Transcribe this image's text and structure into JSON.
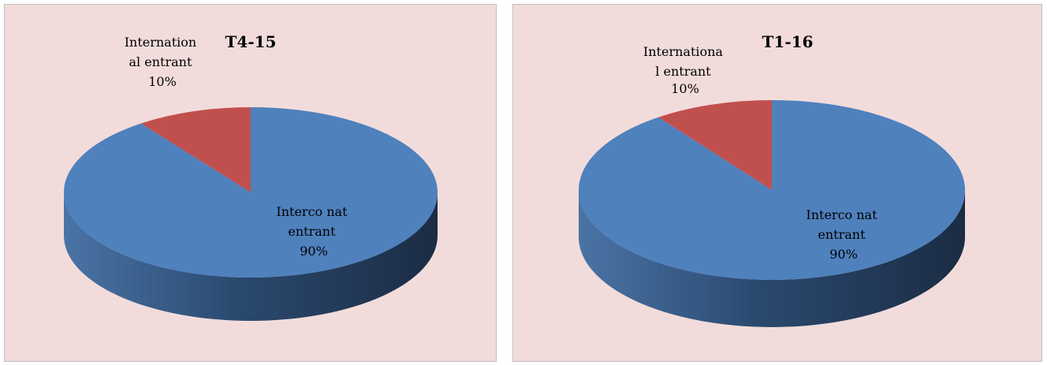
{
  "chart_data": [
    {
      "type": "pie",
      "title": "T4-15",
      "slices": [
        {
          "label_lines": [
            "Internation",
            "al entrant"
          ],
          "percent_label": "10%",
          "value": 10,
          "color": "#c0504d"
        },
        {
          "label_lines": [
            "Interco nat",
            "entrant"
          ],
          "percent_label": "90%",
          "value": 90,
          "color": "#4f81bd"
        }
      ],
      "style": "3d"
    },
    {
      "type": "pie",
      "title": "T1-16",
      "slices": [
        {
          "label_lines": [
            "Internationa",
            "l entrant"
          ],
          "percent_label": "10%",
          "value": 10,
          "color": "#c0504d"
        },
        {
          "label_lines": [
            "Interco nat",
            "entrant"
          ],
          "percent_label": "90%",
          "value": 90,
          "color": "#4f81bd"
        }
      ],
      "style": "3d"
    }
  ]
}
